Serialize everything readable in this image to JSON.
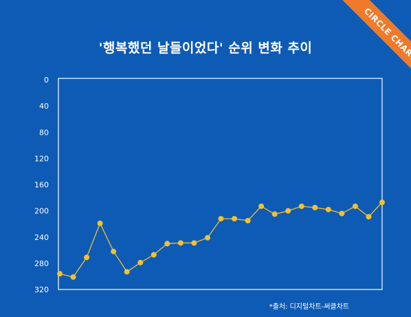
{
  "chart_data": {
    "type": "line",
    "title": "'행복했던 날들이었다' 순위 변화 추이",
    "xlabel": "",
    "ylabel": "",
    "ylim": [
      0,
      320
    ],
    "y_inverted": true,
    "y_ticks": [
      "0",
      "40",
      "80",
      "120",
      "160",
      "200",
      "240",
      "280",
      "320"
    ],
    "grid": false,
    "series": [
      {
        "values": [
          296,
          301,
          271,
          219,
          262,
          293,
          279,
          267,
          250,
          249,
          249,
          241,
          212,
          212,
          215,
          193,
          205,
          200,
          193,
          195,
          198,
          204,
          193,
          209,
          187
        ]
      }
    ],
    "colors": {
      "background": "#0e5bb5",
      "line": "#f2c12e",
      "marker": "#f2c12e",
      "frame": "#ffffff"
    }
  },
  "source": "*출처: 디지털차트-써클차트",
  "badge": "CIRCLE CHART"
}
